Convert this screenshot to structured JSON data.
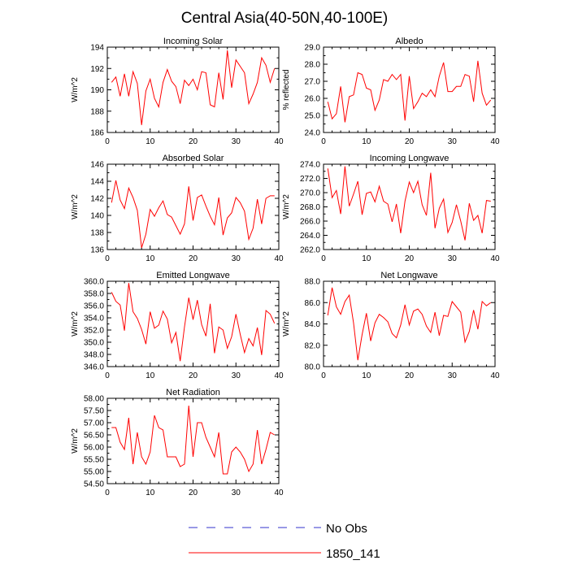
{
  "title": "Central Asia(40-50N,40-100E)",
  "chart_data": [
    {
      "type": "line",
      "title": "Incoming Solar",
      "xlabel": "",
      "ylabel": "W/m^2",
      "xlim": [
        0,
        40
      ],
      "ylim": [
        186,
        194
      ],
      "xticks": [
        0,
        10,
        20,
        30,
        40
      ],
      "yticks": [
        186,
        188,
        190,
        192,
        194
      ],
      "ytick_labels": [
        "186",
        "188",
        "190",
        "192",
        "194"
      ],
      "series": [
        {
          "name": "1850_141",
          "color": "#ff0000",
          "x": [
            1,
            2,
            3,
            4,
            5,
            6,
            7,
            8,
            9,
            10,
            11,
            12,
            13,
            14,
            15,
            16,
            17,
            18,
            19,
            20,
            21,
            22,
            23,
            24,
            25,
            26,
            27,
            28,
            29,
            30,
            31,
            32,
            33,
            34,
            35,
            36,
            37,
            38,
            39
          ],
          "values": [
            190.7,
            191.2,
            189.4,
            191.5,
            189.4,
            191.7,
            190.6,
            186.7,
            189.9,
            191.0,
            189.2,
            188.4,
            190.7,
            191.9,
            190.8,
            190.3,
            188.7,
            190.9,
            190.4,
            191.0,
            190.0,
            191.7,
            191.6,
            188.6,
            188.4,
            191.6,
            189.1,
            193.7,
            190.2,
            192.8,
            192.2,
            191.6,
            188.7,
            189.6,
            190.7,
            193.0,
            192.3,
            190.7,
            192.0
          ]
        }
      ]
    },
    {
      "type": "line",
      "title": "Albedo",
      "xlabel": "",
      "ylabel": "% reflected",
      "xlim": [
        0,
        40
      ],
      "ylim": [
        24,
        29
      ],
      "xticks": [
        0,
        10,
        20,
        30,
        40
      ],
      "yticks": [
        24,
        25,
        26,
        27,
        28,
        29
      ],
      "ytick_labels": [
        "24.0",
        "25.0",
        "26.0",
        "27.0",
        "28.0",
        "29.0"
      ],
      "series": [
        {
          "name": "1850_141",
          "color": "#ff0000",
          "x": [
            1,
            2,
            3,
            4,
            5,
            6,
            7,
            8,
            9,
            10,
            11,
            12,
            13,
            14,
            15,
            16,
            17,
            18,
            19,
            20,
            21,
            22,
            23,
            24,
            25,
            26,
            27,
            28,
            29,
            30,
            31,
            32,
            33,
            34,
            35,
            36,
            37,
            38,
            39
          ],
          "values": [
            25.8,
            24.8,
            25.1,
            26.7,
            24.6,
            26.1,
            26.2,
            27.5,
            27.4,
            26.6,
            26.5,
            25.3,
            25.9,
            27.1,
            27.0,
            27.4,
            27.1,
            27.4,
            24.7,
            27.3,
            25.4,
            25.8,
            26.3,
            26.1,
            26.5,
            26.1,
            27.3,
            28.1,
            26.4,
            26.4,
            26.7,
            26.7,
            27.4,
            27.3,
            25.8,
            28.2,
            26.3,
            25.6,
            25.9
          ]
        }
      ]
    },
    {
      "type": "line",
      "title": "Absorbed Solar",
      "xlabel": "",
      "ylabel": "W/m^2",
      "xlim": [
        0,
        40
      ],
      "ylim": [
        136,
        146
      ],
      "xticks": [
        0,
        10,
        20,
        30,
        40
      ],
      "yticks": [
        136,
        138,
        140,
        142,
        144,
        146
      ],
      "ytick_labels": [
        "136",
        "138",
        "140",
        "142",
        "144",
        "146"
      ],
      "series": [
        {
          "name": "1850_141",
          "color": "#ff0000",
          "x": [
            1,
            2,
            3,
            4,
            5,
            6,
            7,
            8,
            9,
            10,
            11,
            12,
            13,
            14,
            15,
            16,
            17,
            18,
            19,
            20,
            21,
            22,
            23,
            24,
            25,
            26,
            27,
            28,
            29,
            30,
            31,
            32,
            33,
            34,
            35,
            36,
            37,
            38,
            39
          ],
          "values": [
            141.5,
            144.1,
            141.8,
            140.8,
            143.2,
            142.1,
            140.6,
            136.2,
            137.8,
            140.7,
            139.9,
            140.9,
            141.7,
            140.1,
            139.8,
            138.8,
            137.8,
            139.0,
            143.4,
            139.4,
            142.1,
            142.4,
            141.1,
            139.9,
            138.9,
            142.1,
            137.7,
            139.7,
            140.3,
            142.1,
            141.5,
            140.5,
            137.2,
            138.5,
            141.9,
            139.0,
            142.0,
            142.3,
            142.3
          ]
        }
      ]
    },
    {
      "type": "line",
      "title": "Incoming Longwave",
      "xlabel": "",
      "ylabel": "W/m^2",
      "xlim": [
        0,
        40
      ],
      "ylim": [
        262,
        274
      ],
      "xticks": [
        0,
        10,
        20,
        30,
        40
      ],
      "yticks": [
        262,
        264,
        266,
        268,
        270,
        272,
        274
      ],
      "ytick_labels": [
        "262.0",
        "264.0",
        "266.0",
        "268.0",
        "270.0",
        "272.0",
        "274.0"
      ],
      "series": [
        {
          "name": "1850_141",
          "color": "#ff0000",
          "x": [
            1,
            2,
            3,
            4,
            5,
            6,
            7,
            8,
            9,
            10,
            11,
            12,
            13,
            14,
            15,
            16,
            17,
            18,
            19,
            20,
            21,
            22,
            23,
            24,
            25,
            26,
            27,
            28,
            29,
            30,
            31,
            32,
            33,
            34,
            35,
            36,
            37,
            38,
            39
          ],
          "values": [
            273.4,
            269.3,
            270.3,
            267.0,
            273.7,
            268.1,
            269.8,
            271.6,
            266.9,
            269.9,
            270.1,
            268.7,
            270.9,
            268.8,
            268.4,
            265.9,
            268.4,
            264.3,
            268.8,
            271.5,
            270.0,
            271.6,
            268.3,
            266.8,
            272.8,
            265.0,
            267.8,
            269.1,
            264.4,
            265.8,
            268.3,
            266.0,
            263.3,
            268.5,
            266.1,
            266.8,
            264.3,
            268.9,
            268.8
          ]
        }
      ]
    },
    {
      "type": "line",
      "title": "Emitted Longwave",
      "xlabel": "",
      "ylabel": "W/m^2",
      "xlim": [
        0,
        40
      ],
      "ylim": [
        346,
        360
      ],
      "xticks": [
        0,
        10,
        20,
        30,
        40
      ],
      "yticks": [
        346,
        348,
        350,
        352,
        354,
        356,
        358,
        360
      ],
      "ytick_labels": [
        "346.0",
        "348.0",
        "350.0",
        "352.0",
        "354.0",
        "356.0",
        "358.0",
        "360.0"
      ],
      "series": [
        {
          "name": "1850_141",
          "color": "#ff0000",
          "x": [
            1,
            2,
            3,
            4,
            5,
            6,
            7,
            8,
            9,
            10,
            11,
            12,
            13,
            14,
            15,
            16,
            17,
            18,
            19,
            20,
            21,
            22,
            23,
            24,
            25,
            26,
            27,
            28,
            29,
            30,
            31,
            32,
            33,
            34,
            35,
            36,
            37,
            38,
            39
          ],
          "values": [
            358.2,
            356.7,
            356.1,
            351.9,
            359.7,
            355.0,
            353.9,
            352.1,
            349.7,
            355.0,
            352.3,
            352.8,
            355.1,
            353.8,
            349.9,
            351.6,
            346.9,
            352.5,
            357.3,
            353.7,
            356.9,
            352.9,
            351.0,
            356.3,
            348.2,
            352.5,
            352.0,
            349.0,
            350.9,
            354.6,
            351.3,
            348.3,
            350.6,
            349.4,
            352.4,
            347.9,
            355.2,
            354.6,
            353.1
          ]
        }
      ]
    },
    {
      "type": "line",
      "title": "Net Longwave",
      "xlabel": "",
      "ylabel": "W/m^2",
      "xlim": [
        0,
        40
      ],
      "ylim": [
        80,
        88
      ],
      "xticks": [
        0,
        10,
        20,
        30,
        40
      ],
      "yticks": [
        80,
        82,
        84,
        86,
        88
      ],
      "ytick_labels": [
        "80.0",
        "82.0",
        "84.0",
        "86.0",
        "88.0"
      ],
      "series": [
        {
          "name": "1850_141",
          "color": "#ff0000",
          "x": [
            1,
            2,
            3,
            4,
            5,
            6,
            7,
            8,
            9,
            10,
            11,
            12,
            13,
            14,
            15,
            16,
            17,
            18,
            19,
            20,
            21,
            22,
            23,
            24,
            25,
            26,
            27,
            28,
            29,
            30,
            31,
            32,
            33,
            34,
            35,
            36,
            37,
            38,
            39
          ],
          "values": [
            84.8,
            87.4,
            85.6,
            84.9,
            86.1,
            86.7,
            84.1,
            80.6,
            83.0,
            85.0,
            82.4,
            84.1,
            84.9,
            84.6,
            84.2,
            83.1,
            82.7,
            83.9,
            85.8,
            83.9,
            85.2,
            85.4,
            84.9,
            83.8,
            83.2,
            85.1,
            82.9,
            84.8,
            84.7,
            86.1,
            85.6,
            85.1,
            82.3,
            83.3,
            85.3,
            83.5,
            86.1,
            85.7,
            86.0
          ]
        }
      ]
    },
    {
      "type": "line",
      "title": "Net Radiation",
      "xlabel": "",
      "ylabel": "W/m^2",
      "xlim": [
        0,
        40
      ],
      "ylim": [
        54.5,
        58
      ],
      "xticks": [
        0,
        10,
        20,
        30,
        40
      ],
      "yticks": [
        54.5,
        55,
        55.5,
        56,
        56.5,
        57,
        57.5,
        58
      ],
      "ytick_labels": [
        "54.50",
        "55.00",
        "55.50",
        "56.00",
        "56.50",
        "57.00",
        "57.50",
        "58.00"
      ],
      "series": [
        {
          "name": "1850_141",
          "color": "#ff0000",
          "x": [
            1,
            2,
            3,
            4,
            5,
            6,
            7,
            8,
            9,
            10,
            11,
            12,
            13,
            14,
            15,
            16,
            17,
            18,
            19,
            20,
            21,
            22,
            23,
            24,
            25,
            26,
            27,
            28,
            29,
            30,
            31,
            32,
            33,
            34,
            35,
            36,
            37,
            38,
            39
          ],
          "values": [
            56.8,
            56.8,
            56.2,
            55.9,
            57.2,
            55.3,
            56.6,
            55.6,
            55.3,
            55.8,
            57.3,
            56.8,
            56.7,
            55.6,
            55.6,
            55.6,
            55.2,
            55.3,
            57.7,
            55.6,
            57.0,
            57.0,
            56.4,
            56.0,
            55.6,
            56.6,
            54.9,
            54.9,
            55.8,
            56.0,
            55.8,
            55.5,
            55.0,
            55.3,
            56.7,
            55.3,
            55.9,
            56.6,
            56.5
          ]
        }
      ]
    }
  ],
  "legend": {
    "entries": [
      {
        "label": "No Obs",
        "color": "#0000ff",
        "style": "dashed"
      },
      {
        "label": "1850_141",
        "color": "#ff0000",
        "style": "solid"
      }
    ]
  }
}
